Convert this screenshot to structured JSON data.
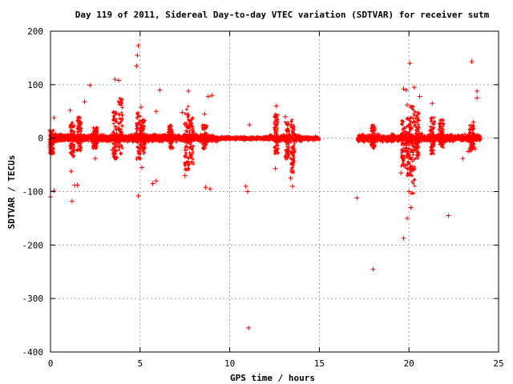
{
  "chart_data": {
    "type": "scatter",
    "title": "Day 119 of 2011, Sidereal Day-to-day VTEC variation (SDTVAR) for receiver sutm",
    "xlabel": "GPS time / hours",
    "ylabel": "SDTVAR / TECUs",
    "xlim": [
      0,
      25
    ],
    "ylim": [
      -400,
      200
    ],
    "x_ticks": [
      "0",
      "5",
      "10",
      "15",
      "20",
      "25"
    ],
    "y_ticks": [
      "200",
      "100",
      "0",
      "-100",
      "-200",
      "-300",
      "-400"
    ],
    "grid": true,
    "legend": "none",
    "marker": "plus",
    "color": "#ff0000",
    "data_gaps_hours": [
      [
        15.0,
        17.1
      ]
    ],
    "dense_band_range": [
      -12,
      12
    ],
    "bursts": [
      {
        "x": 0.05,
        "y_min": -30,
        "y_max": 15
      },
      {
        "x": 1.2,
        "y_min": -35,
        "y_max": 30
      },
      {
        "x": 1.6,
        "y_min": -25,
        "y_max": 40
      },
      {
        "x": 2.5,
        "y_min": -20,
        "y_max": 20
      },
      {
        "x": 3.6,
        "y_min": -40,
        "y_max": 50
      },
      {
        "x": 3.9,
        "y_min": -30,
        "y_max": 75
      },
      {
        "x": 4.9,
        "y_min": -40,
        "y_max": 50
      },
      {
        "x": 5.15,
        "y_min": -30,
        "y_max": 35
      },
      {
        "x": 6.7,
        "y_min": -20,
        "y_max": 25
      },
      {
        "x": 7.6,
        "y_min": -60,
        "y_max": 60
      },
      {
        "x": 7.85,
        "y_min": -50,
        "y_max": 40
      },
      {
        "x": 8.6,
        "y_min": -20,
        "y_max": 25
      },
      {
        "x": 12.6,
        "y_min": -30,
        "y_max": 45
      },
      {
        "x": 13.2,
        "y_min": -40,
        "y_max": 30
      },
      {
        "x": 13.5,
        "y_min": -65,
        "y_max": 35
      },
      {
        "x": 18.0,
        "y_min": -20,
        "y_max": 25
      },
      {
        "x": 19.7,
        "y_min": -55,
        "y_max": 35
      },
      {
        "x": 19.95,
        "y_min": -70,
        "y_max": 40
      },
      {
        "x": 20.2,
        "y_min": -110,
        "y_max": 60
      },
      {
        "x": 20.45,
        "y_min": -40,
        "y_max": 55
      },
      {
        "x": 21.3,
        "y_min": -30,
        "y_max": 40
      },
      {
        "x": 21.8,
        "y_min": -20,
        "y_max": 35
      },
      {
        "x": 23.5,
        "y_min": -25,
        "y_max": 25
      }
    ],
    "outliers": [
      {
        "x": 0.0,
        "y": -110
      },
      {
        "x": 0.2,
        "y": -98
      },
      {
        "x": 0.2,
        "y": 38
      },
      {
        "x": 1.2,
        "y": -118
      },
      {
        "x": 1.15,
        "y": -62
      },
      {
        "x": 1.35,
        "y": -88
      },
      {
        "x": 1.5,
        "y": -88
      },
      {
        "x": 1.1,
        "y": 52
      },
      {
        "x": 1.9,
        "y": 68
      },
      {
        "x": 2.2,
        "y": 99
      },
      {
        "x": 2.5,
        "y": -38
      },
      {
        "x": 3.6,
        "y": 110
      },
      {
        "x": 3.8,
        "y": 108
      },
      {
        "x": 3.45,
        "y": -22
      },
      {
        "x": 4.9,
        "y": 173
      },
      {
        "x": 4.85,
        "y": 155
      },
      {
        "x": 4.8,
        "y": 135
      },
      {
        "x": 4.9,
        "y": -108
      },
      {
        "x": 5.1,
        "y": -55
      },
      {
        "x": 5.05,
        "y": 58
      },
      {
        "x": 5.7,
        "y": -85
      },
      {
        "x": 5.9,
        "y": -80
      },
      {
        "x": 6.1,
        "y": 90
      },
      {
        "x": 5.9,
        "y": 50
      },
      {
        "x": 7.5,
        "y": -70
      },
      {
        "x": 7.7,
        "y": 88
      },
      {
        "x": 7.35,
        "y": 48
      },
      {
        "x": 8.65,
        "y": -92
      },
      {
        "x": 8.9,
        "y": -95
      },
      {
        "x": 8.8,
        "y": 78
      },
      {
        "x": 9.0,
        "y": 80
      },
      {
        "x": 8.6,
        "y": 45
      },
      {
        "x": 10.9,
        "y": -90
      },
      {
        "x": 11.0,
        "y": -100
      },
      {
        "x": 11.05,
        "y": -355
      },
      {
        "x": 11.1,
        "y": 25
      },
      {
        "x": 12.6,
        "y": 60
      },
      {
        "x": 12.55,
        "y": -57
      },
      {
        "x": 13.1,
        "y": 40
      },
      {
        "x": 13.5,
        "y": -90
      },
      {
        "x": 13.4,
        "y": -75
      },
      {
        "x": 17.1,
        "y": -112
      },
      {
        "x": 18.0,
        "y": -245
      },
      {
        "x": 19.7,
        "y": -187
      },
      {
        "x": 19.55,
        "y": -65
      },
      {
        "x": 19.7,
        "y": 92
      },
      {
        "x": 19.85,
        "y": 90
      },
      {
        "x": 20.3,
        "y": 95
      },
      {
        "x": 20.05,
        "y": 140
      },
      {
        "x": 19.9,
        "y": -150
      },
      {
        "x": 20.1,
        "y": -130
      },
      {
        "x": 20.0,
        "y": -100
      },
      {
        "x": 19.9,
        "y": 62
      },
      {
        "x": 20.6,
        "y": 78
      },
      {
        "x": 21.3,
        "y": 65
      },
      {
        "x": 22.2,
        "y": -145
      },
      {
        "x": 23.0,
        "y": -38
      },
      {
        "x": 23.5,
        "y": 143
      },
      {
        "x": 23.8,
        "y": 88
      },
      {
        "x": 23.8,
        "y": 75
      },
      {
        "x": 23.6,
        "y": 30
      },
      {
        "x": 23.3,
        "y": -25
      },
      {
        "x": 23.7,
        "y": -20
      }
    ]
  }
}
